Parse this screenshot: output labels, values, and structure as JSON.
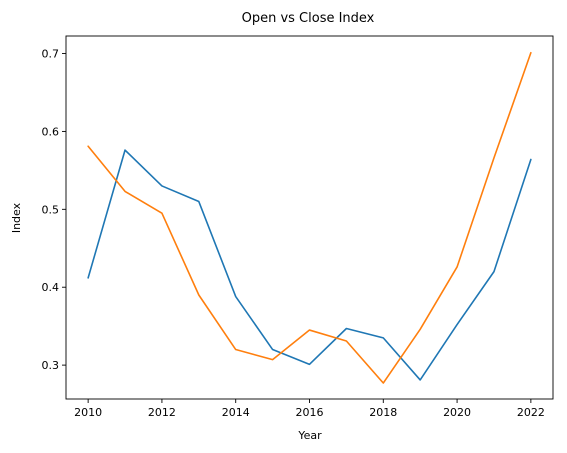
{
  "chart_data": {
    "type": "line",
    "title": "Open vs Close Index",
    "xlabel": "Year",
    "ylabel": "Index",
    "x": [
      2010,
      2011,
      2012,
      2013,
      2014,
      2015,
      2016,
      2017,
      2018,
      2019,
      2020,
      2021,
      2022
    ],
    "xticks": [
      2010,
      2012,
      2014,
      2016,
      2018,
      2020,
      2022
    ],
    "xlim": [
      2009.4,
      2022.6
    ],
    "yticks": [
      0.3,
      0.4,
      0.5,
      0.6,
      0.7
    ],
    "ytick_labels": [
      "0.3",
      "0.4",
      "0.5",
      "0.6",
      "0.7"
    ],
    "ylim": [
      0.2565,
      0.7225
    ],
    "grid": false,
    "series": [
      {
        "color": "#1f77b4",
        "values": [
          0.412,
          0.576,
          0.53,
          0.51,
          0.388,
          0.32,
          0.301,
          0.347,
          0.335,
          0.281,
          0.352,
          0.42,
          0.564
        ]
      },
      {
        "color": "#ff7f0e",
        "values": [
          0.581,
          0.523,
          0.495,
          0.39,
          0.32,
          0.307,
          0.345,
          0.331,
          0.277,
          0.346,
          0.426,
          0.566,
          0.701
        ]
      }
    ]
  }
}
